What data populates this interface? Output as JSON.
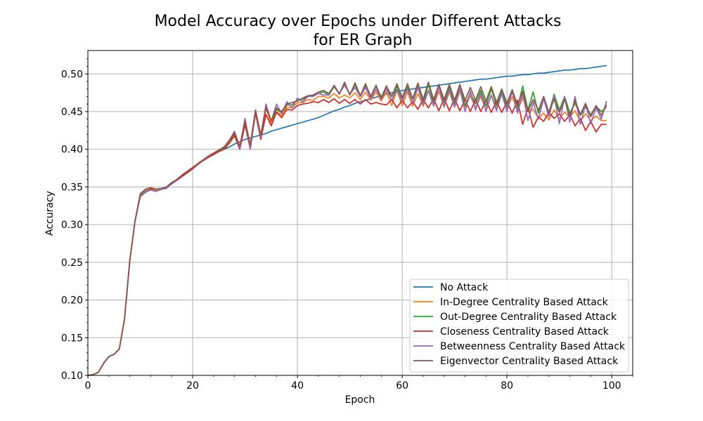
{
  "chart_data": {
    "type": "line",
    "title_line1": "Model Accuracy over Epochs under Different Attacks",
    "title_line2": "for ER Graph",
    "xlabel": "Epoch",
    "ylabel": "Accuracy",
    "xlim": [
      0,
      104
    ],
    "ylim": [
      0.1,
      0.531
    ],
    "xticks": [
      0,
      20,
      40,
      60,
      80,
      100
    ],
    "yticks": [
      0.1,
      0.15,
      0.2,
      0.25,
      0.3,
      0.35,
      0.4,
      0.45,
      0.5
    ],
    "ytick_labels": [
      "0.10",
      "0.15",
      "0.20",
      "0.25",
      "0.30",
      "0.35",
      "0.40",
      "0.45",
      "0.50"
    ],
    "grid": true,
    "legend_position": "lower-right",
    "series": [
      {
        "name": "No Attack",
        "color": "#1f77b4"
      },
      {
        "name": "In-Degree Centrality Based Attack",
        "color": "#ff7f0e"
      },
      {
        "name": "Out-Degree Centrality Based Attack",
        "color": "#2ca02c"
      },
      {
        "name": "Closeness Centrality Based Attack",
        "color": "#d62728"
      },
      {
        "name": "Betweenness Centrality Based Attack",
        "color": "#9467bd"
      },
      {
        "name": "Eigenvector Centrality Based Attack",
        "color": "#8c564b"
      }
    ],
    "x": [
      0,
      1,
      2,
      3,
      4,
      5,
      6,
      7,
      8,
      9,
      10,
      11,
      12,
      13,
      14,
      15,
      16,
      17,
      18,
      19,
      20,
      21,
      22,
      23,
      24,
      25,
      26,
      27,
      28,
      29,
      30,
      31,
      32,
      33,
      34,
      35,
      36,
      37,
      38,
      39,
      40,
      41,
      42,
      43,
      44,
      45,
      46,
      47,
      48,
      49,
      50,
      51,
      52,
      53,
      54,
      55,
      56,
      57,
      58,
      59,
      60,
      61,
      62,
      63,
      64,
      65,
      66,
      67,
      68,
      69,
      70,
      71,
      72,
      73,
      74,
      75,
      76,
      77,
      78,
      79,
      80,
      81,
      82,
      83,
      84,
      85,
      86,
      87,
      88,
      89,
      90,
      91,
      92,
      93,
      94,
      95,
      96,
      97,
      98,
      99
    ],
    "values": {
      "No Attack": [
        0.1,
        0.101,
        0.104,
        0.116,
        0.125,
        0.128,
        0.135,
        0.175,
        0.252,
        0.305,
        0.338,
        0.344,
        0.347,
        0.346,
        0.347,
        0.349,
        0.354,
        0.359,
        0.365,
        0.37,
        0.375,
        0.38,
        0.385,
        0.389,
        0.393,
        0.397,
        0.4,
        0.403,
        0.407,
        0.41,
        0.413,
        0.415,
        0.417,
        0.419,
        0.421,
        0.424,
        0.426,
        0.428,
        0.43,
        0.432,
        0.434,
        0.436,
        0.438,
        0.44,
        0.442,
        0.445,
        0.448,
        0.451,
        0.453,
        0.456,
        0.458,
        0.461,
        0.463,
        0.465,
        0.467,
        0.469,
        0.471,
        0.473,
        0.475,
        0.476,
        0.478,
        0.479,
        0.48,
        0.481,
        0.482,
        0.483,
        0.484,
        0.485,
        0.486,
        0.487,
        0.488,
        0.489,
        0.49,
        0.491,
        0.492,
        0.493,
        0.493,
        0.494,
        0.495,
        0.496,
        0.497,
        0.497,
        0.498,
        0.499,
        0.499,
        0.5,
        0.501,
        0.501,
        0.502,
        0.503,
        0.504,
        0.505,
        0.505,
        0.506,
        0.507,
        0.507,
        0.508,
        0.509,
        0.51,
        0.511
      ],
      "In-Degree Centrality Based Attack": [
        0.1,
        0.101,
        0.104,
        0.116,
        0.125,
        0.128,
        0.135,
        0.175,
        0.252,
        0.305,
        0.34,
        0.346,
        0.348,
        0.346,
        0.347,
        0.349,
        0.355,
        0.359,
        0.365,
        0.37,
        0.375,
        0.38,
        0.385,
        0.39,
        0.394,
        0.398,
        0.401,
        0.41,
        0.42,
        0.401,
        0.435,
        0.401,
        0.45,
        0.415,
        0.455,
        0.433,
        0.45,
        0.445,
        0.456,
        0.455,
        0.462,
        0.462,
        0.466,
        0.465,
        0.47,
        0.47,
        0.468,
        0.474,
        0.468,
        0.472,
        0.468,
        0.475,
        0.466,
        0.476,
        0.465,
        0.476,
        0.464,
        0.476,
        0.458,
        0.478,
        0.458,
        0.476,
        0.457,
        0.474,
        0.457,
        0.478,
        0.457,
        0.477,
        0.456,
        0.476,
        0.456,
        0.477,
        0.456,
        0.471,
        0.455,
        0.47,
        0.452,
        0.471,
        0.455,
        0.473,
        0.453,
        0.47,
        0.451,
        0.468,
        0.451,
        0.453,
        0.441,
        0.448,
        0.439,
        0.452,
        0.441,
        0.449,
        0.443,
        0.451,
        0.437,
        0.447,
        0.438,
        0.444,
        0.438,
        0.438
      ],
      "Out-Degree Centrality Based Attack": [
        0.1,
        0.101,
        0.104,
        0.116,
        0.125,
        0.128,
        0.135,
        0.175,
        0.252,
        0.305,
        0.34,
        0.347,
        0.349,
        0.347,
        0.347,
        0.349,
        0.355,
        0.359,
        0.365,
        0.37,
        0.375,
        0.38,
        0.385,
        0.39,
        0.394,
        0.398,
        0.402,
        0.411,
        0.421,
        0.403,
        0.437,
        0.405,
        0.452,
        0.418,
        0.458,
        0.437,
        0.453,
        0.448,
        0.459,
        0.459,
        0.466,
        0.466,
        0.47,
        0.471,
        0.474,
        0.476,
        0.472,
        0.483,
        0.474,
        0.486,
        0.473,
        0.486,
        0.471,
        0.484,
        0.47,
        0.484,
        0.469,
        0.484,
        0.464,
        0.484,
        0.463,
        0.483,
        0.461,
        0.485,
        0.461,
        0.486,
        0.461,
        0.485,
        0.462,
        0.482,
        0.46,
        0.486,
        0.458,
        0.475,
        0.46,
        0.478,
        0.457,
        0.48,
        0.458,
        0.478,
        0.456,
        0.476,
        0.454,
        0.484,
        0.452,
        0.476,
        0.448,
        0.47,
        0.448,
        0.473,
        0.452,
        0.47,
        0.448,
        0.461,
        0.445,
        0.456,
        0.446,
        0.457,
        0.45,
        0.456
      ],
      "Closeness Centrality Based Attack": [
        0.1,
        0.101,
        0.104,
        0.116,
        0.125,
        0.128,
        0.135,
        0.175,
        0.252,
        0.305,
        0.337,
        0.343,
        0.347,
        0.344,
        0.347,
        0.348,
        0.355,
        0.359,
        0.364,
        0.369,
        0.374,
        0.38,
        0.385,
        0.389,
        0.393,
        0.397,
        0.4,
        0.408,
        0.418,
        0.4,
        0.433,
        0.4,
        0.448,
        0.413,
        0.446,
        0.431,
        0.449,
        0.442,
        0.453,
        0.452,
        0.458,
        0.46,
        0.461,
        0.463,
        0.462,
        0.466,
        0.462,
        0.467,
        0.461,
        0.466,
        0.461,
        0.466,
        0.46,
        0.466,
        0.46,
        0.462,
        0.46,
        0.459,
        0.466,
        0.455,
        0.465,
        0.455,
        0.463,
        0.453,
        0.466,
        0.455,
        0.467,
        0.451,
        0.468,
        0.451,
        0.467,
        0.451,
        0.466,
        0.45,
        0.466,
        0.45,
        0.465,
        0.449,
        0.464,
        0.449,
        0.463,
        0.448,
        0.465,
        0.433,
        0.455,
        0.429,
        0.443,
        0.437,
        0.449,
        0.441,
        0.447,
        0.437,
        0.446,
        0.431,
        0.441,
        0.425,
        0.437,
        0.423,
        0.433,
        0.433
      ],
      "Betweenness Centrality Based Attack": [
        0.1,
        0.101,
        0.104,
        0.116,
        0.125,
        0.128,
        0.135,
        0.175,
        0.252,
        0.305,
        0.338,
        0.343,
        0.346,
        0.344,
        0.347,
        0.348,
        0.355,
        0.36,
        0.366,
        0.371,
        0.376,
        0.381,
        0.386,
        0.39,
        0.395,
        0.399,
        0.403,
        0.412,
        0.424,
        0.402,
        0.441,
        0.401,
        0.452,
        0.416,
        0.46,
        0.437,
        0.46,
        0.447,
        0.463,
        0.455,
        0.468,
        0.463,
        0.47,
        0.47,
        0.474,
        0.472,
        0.472,
        0.485,
        0.474,
        0.485,
        0.473,
        0.482,
        0.47,
        0.482,
        0.467,
        0.48,
        0.466,
        0.48,
        0.465,
        0.479,
        0.464,
        0.48,
        0.461,
        0.482,
        0.459,
        0.478,
        0.458,
        0.483,
        0.457,
        0.479,
        0.456,
        0.481,
        0.45,
        0.477,
        0.452,
        0.474,
        0.45,
        0.472,
        0.451,
        0.474,
        0.45,
        0.479,
        0.448,
        0.474,
        0.438,
        0.462,
        0.44,
        0.467,
        0.443,
        0.471,
        0.434,
        0.47,
        0.436,
        0.47,
        0.433,
        0.46,
        0.434,
        0.455,
        0.44,
        0.464
      ],
      "Eigenvector Centrality Based Attack": [
        0.1,
        0.101,
        0.104,
        0.116,
        0.125,
        0.128,
        0.135,
        0.175,
        0.252,
        0.305,
        0.341,
        0.347,
        0.349,
        0.347,
        0.348,
        0.35,
        0.356,
        0.36,
        0.366,
        0.371,
        0.376,
        0.381,
        0.386,
        0.391,
        0.395,
        0.399,
        0.403,
        0.412,
        0.422,
        0.404,
        0.438,
        0.406,
        0.452,
        0.419,
        0.455,
        0.438,
        0.455,
        0.45,
        0.46,
        0.462,
        0.464,
        0.468,
        0.471,
        0.472,
        0.476,
        0.478,
        0.474,
        0.484,
        0.473,
        0.489,
        0.472,
        0.488,
        0.471,
        0.487,
        0.47,
        0.485,
        0.468,
        0.484,
        0.47,
        0.487,
        0.468,
        0.487,
        0.467,
        0.488,
        0.466,
        0.489,
        0.466,
        0.486,
        0.466,
        0.486,
        0.465,
        0.486,
        0.465,
        0.482,
        0.465,
        0.483,
        0.464,
        0.483,
        0.462,
        0.48,
        0.461,
        0.479,
        0.459,
        0.477,
        0.45,
        0.466,
        0.452,
        0.47,
        0.449,
        0.466,
        0.449,
        0.466,
        0.444,
        0.465,
        0.446,
        0.461,
        0.443,
        0.458,
        0.445,
        0.459
      ]
    }
  }
}
